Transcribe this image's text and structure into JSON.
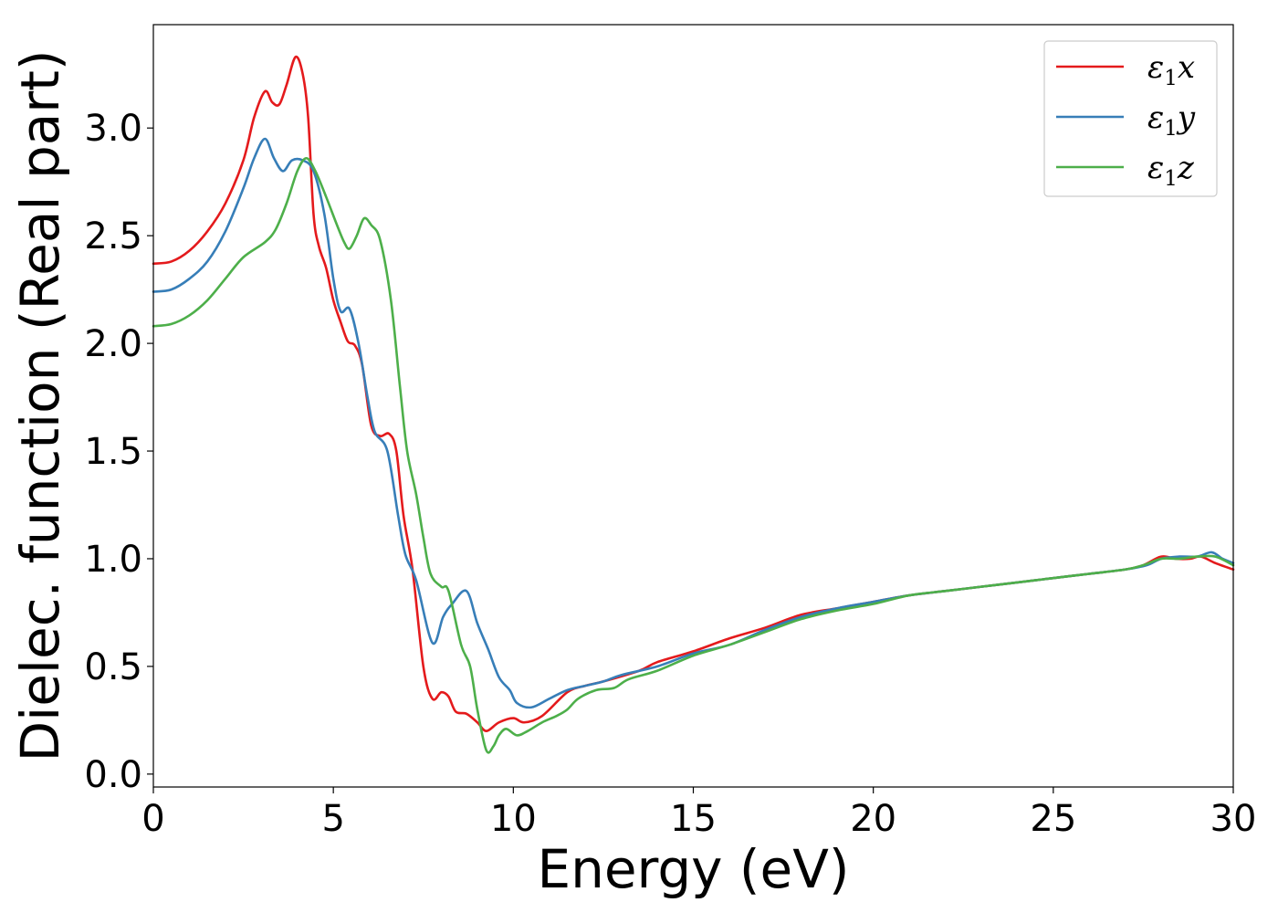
{
  "chart_data": {
    "type": "line",
    "title": "",
    "xlabel": "Energy (eV)",
    "ylabel": "Dielec. function (Real part)",
    "xlim": [
      0,
      30
    ],
    "ylim": [
      -0.06,
      3.48
    ],
    "xticks": [
      0,
      5,
      10,
      15,
      20,
      25,
      30
    ],
    "xtick_labels": [
      "0",
      "5",
      "10",
      "15",
      "20",
      "25",
      "30"
    ],
    "yticks": [
      0.0,
      0.5,
      1.0,
      1.5,
      2.0,
      2.5,
      3.0
    ],
    "ytick_labels": [
      "0.0",
      "0.5",
      "1.0",
      "1.5",
      "2.0",
      "2.5",
      "3.0"
    ],
    "grid": false,
    "legend_position": "top-right",
    "series": [
      {
        "name": "ε1x",
        "legend": {
          "symbol": "ε",
          "sub": "1",
          "suffix": "x"
        },
        "color": "#e41a1c",
        "points": [
          [
            0,
            2.37
          ],
          [
            0.5,
            2.38
          ],
          [
            1,
            2.43
          ],
          [
            1.5,
            2.52
          ],
          [
            2,
            2.65
          ],
          [
            2.5,
            2.85
          ],
          [
            2.8,
            3.05
          ],
          [
            3.1,
            3.17
          ],
          [
            3.3,
            3.12
          ],
          [
            3.5,
            3.11
          ],
          [
            3.7,
            3.2
          ],
          [
            3.95,
            3.33
          ],
          [
            4.15,
            3.25
          ],
          [
            4.3,
            3.05
          ],
          [
            4.45,
            2.6
          ],
          [
            4.6,
            2.45
          ],
          [
            4.8,
            2.35
          ],
          [
            5,
            2.2
          ],
          [
            5.2,
            2.1
          ],
          [
            5.4,
            2.01
          ],
          [
            5.6,
            1.99
          ],
          [
            5.8,
            1.9
          ],
          [
            6.05,
            1.62
          ],
          [
            6.3,
            1.57
          ],
          [
            6.55,
            1.58
          ],
          [
            6.75,
            1.5
          ],
          [
            6.95,
            1.2
          ],
          [
            7.2,
            0.95
          ],
          [
            7.5,
            0.5
          ],
          [
            7.75,
            0.35
          ],
          [
            8,
            0.38
          ],
          [
            8.2,
            0.36
          ],
          [
            8.4,
            0.29
          ],
          [
            8.7,
            0.28
          ],
          [
            9.0,
            0.24
          ],
          [
            9.25,
            0.2
          ],
          [
            9.6,
            0.24
          ],
          [
            10,
            0.26
          ],
          [
            10.3,
            0.24
          ],
          [
            10.8,
            0.27
          ],
          [
            11.5,
            0.38
          ],
          [
            12,
            0.41
          ],
          [
            12.5,
            0.43
          ],
          [
            13.5,
            0.48
          ],
          [
            14,
            0.52
          ],
          [
            15,
            0.57
          ],
          [
            16,
            0.63
          ],
          [
            17,
            0.68
          ],
          [
            18,
            0.74
          ],
          [
            19,
            0.77
          ],
          [
            20,
            0.8
          ],
          [
            21,
            0.83
          ],
          [
            22,
            0.85
          ],
          [
            23,
            0.87
          ],
          [
            24,
            0.89
          ],
          [
            25,
            0.91
          ],
          [
            26,
            0.93
          ],
          [
            27,
            0.95
          ],
          [
            27.5,
            0.97
          ],
          [
            28,
            1.01
          ],
          [
            28.4,
            1.0
          ],
          [
            28.8,
            1.0
          ],
          [
            29.1,
            1.01
          ],
          [
            29.5,
            0.98
          ],
          [
            30,
            0.95
          ]
        ]
      },
      {
        "name": "ε1y",
        "legend": {
          "symbol": "ε",
          "sub": "1",
          "suffix": "y"
        },
        "color": "#377eb8",
        "points": [
          [
            0,
            2.24
          ],
          [
            0.5,
            2.25
          ],
          [
            1,
            2.3
          ],
          [
            1.5,
            2.38
          ],
          [
            2,
            2.52
          ],
          [
            2.5,
            2.72
          ],
          [
            2.8,
            2.86
          ],
          [
            3.1,
            2.95
          ],
          [
            3.35,
            2.86
          ],
          [
            3.6,
            2.8
          ],
          [
            3.85,
            2.85
          ],
          [
            4.15,
            2.85
          ],
          [
            4.45,
            2.8
          ],
          [
            4.75,
            2.6
          ],
          [
            5,
            2.3
          ],
          [
            5.2,
            2.15
          ],
          [
            5.45,
            2.16
          ],
          [
            5.7,
            2.0
          ],
          [
            5.95,
            1.75
          ],
          [
            6.15,
            1.59
          ],
          [
            6.5,
            1.5
          ],
          [
            6.8,
            1.2
          ],
          [
            7.0,
            1.02
          ],
          [
            7.3,
            0.9
          ],
          [
            7.75,
            0.61
          ],
          [
            8.05,
            0.73
          ],
          [
            8.3,
            0.79
          ],
          [
            8.7,
            0.85
          ],
          [
            9.0,
            0.7
          ],
          [
            9.3,
            0.58
          ],
          [
            9.6,
            0.45
          ],
          [
            9.9,
            0.39
          ],
          [
            10.1,
            0.33
          ],
          [
            10.5,
            0.31
          ],
          [
            11,
            0.35
          ],
          [
            11.5,
            0.39
          ],
          [
            12,
            0.41
          ],
          [
            12.5,
            0.43
          ],
          [
            13,
            0.46
          ],
          [
            14,
            0.5
          ],
          [
            15,
            0.56
          ],
          [
            16,
            0.6
          ],
          [
            17,
            0.67
          ],
          [
            18,
            0.73
          ],
          [
            19,
            0.77
          ],
          [
            20,
            0.8
          ],
          [
            21,
            0.83
          ],
          [
            22,
            0.85
          ],
          [
            23,
            0.87
          ],
          [
            24,
            0.89
          ],
          [
            25,
            0.91
          ],
          [
            26,
            0.93
          ],
          [
            27,
            0.95
          ],
          [
            27.6,
            0.97
          ],
          [
            28,
            1.0
          ],
          [
            28.5,
            1.01
          ],
          [
            29,
            1.01
          ],
          [
            29.4,
            1.03
          ],
          [
            29.7,
            1.0
          ],
          [
            30,
            0.98
          ]
        ]
      },
      {
        "name": "ε1z",
        "legend": {
          "symbol": "ε",
          "sub": "1",
          "suffix": "z"
        },
        "color": "#4daf4a",
        "points": [
          [
            0,
            2.08
          ],
          [
            0.5,
            2.09
          ],
          [
            1,
            2.13
          ],
          [
            1.5,
            2.2
          ],
          [
            2,
            2.3
          ],
          [
            2.5,
            2.4
          ],
          [
            3.1,
            2.47
          ],
          [
            3.4,
            2.53
          ],
          [
            3.7,
            2.65
          ],
          [
            4.0,
            2.8
          ],
          [
            4.25,
            2.86
          ],
          [
            4.5,
            2.8
          ],
          [
            4.8,
            2.68
          ],
          [
            5.1,
            2.55
          ],
          [
            5.3,
            2.47
          ],
          [
            5.45,
            2.44
          ],
          [
            5.65,
            2.5
          ],
          [
            5.85,
            2.58
          ],
          [
            6.05,
            2.55
          ],
          [
            6.3,
            2.48
          ],
          [
            6.6,
            2.2
          ],
          [
            6.85,
            1.8
          ],
          [
            7.05,
            1.5
          ],
          [
            7.3,
            1.3
          ],
          [
            7.5,
            1.1
          ],
          [
            7.7,
            0.93
          ],
          [
            8,
            0.87
          ],
          [
            8.2,
            0.85
          ],
          [
            8.55,
            0.6
          ],
          [
            8.8,
            0.5
          ],
          [
            9.0,
            0.3
          ],
          [
            9.25,
            0.11
          ],
          [
            9.45,
            0.13
          ],
          [
            9.6,
            0.18
          ],
          [
            9.8,
            0.21
          ],
          [
            10.1,
            0.18
          ],
          [
            10.4,
            0.2
          ],
          [
            10.8,
            0.24
          ],
          [
            11.2,
            0.27
          ],
          [
            11.5,
            0.3
          ],
          [
            11.8,
            0.35
          ],
          [
            12.3,
            0.39
          ],
          [
            12.8,
            0.4
          ],
          [
            13.2,
            0.44
          ],
          [
            14,
            0.48
          ],
          [
            15,
            0.55
          ],
          [
            16,
            0.6
          ],
          [
            17,
            0.66
          ],
          [
            18,
            0.72
          ],
          [
            19,
            0.76
          ],
          [
            20,
            0.79
          ],
          [
            21,
            0.83
          ],
          [
            22,
            0.85
          ],
          [
            23,
            0.87
          ],
          [
            24,
            0.89
          ],
          [
            25,
            0.91
          ],
          [
            26,
            0.93
          ],
          [
            27,
            0.95
          ],
          [
            27.5,
            0.97
          ],
          [
            28,
            1.0
          ],
          [
            28.5,
            1.0
          ],
          [
            29,
            1.01
          ],
          [
            29.5,
            1.01
          ],
          [
            30,
            0.97
          ]
        ]
      }
    ]
  }
}
